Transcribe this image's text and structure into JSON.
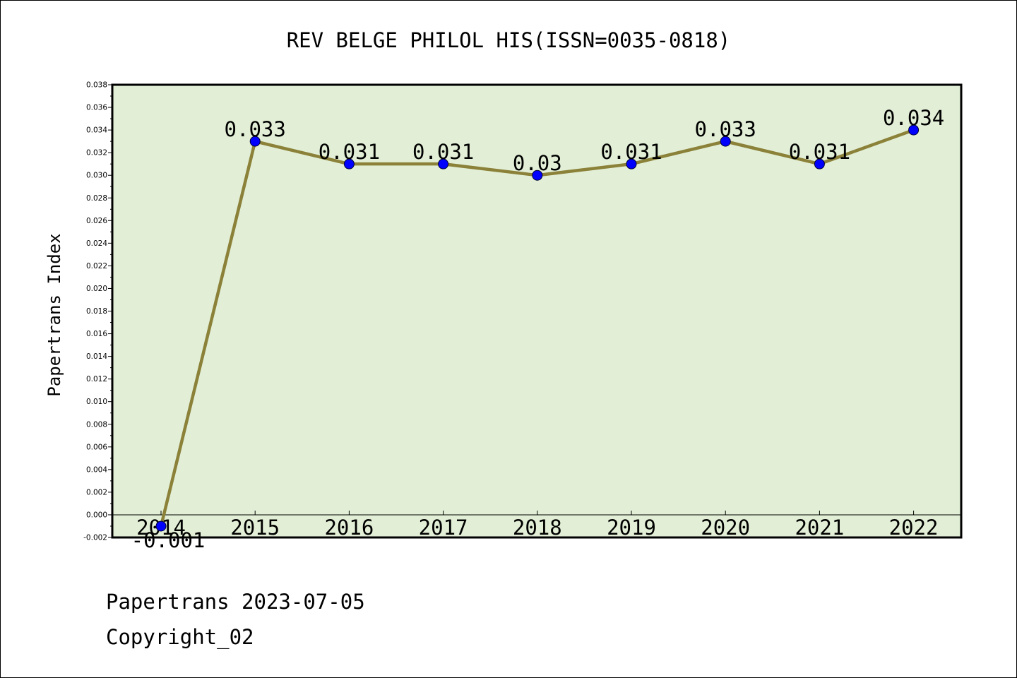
{
  "chart_data": {
    "type": "line",
    "title": "REV BELGE PHILOL HIS(ISSN=0035-0818)",
    "xlabel": "",
    "ylabel": "Papertrans Index",
    "categories": [
      "2014",
      "2015",
      "2016",
      "2017",
      "2018",
      "2019",
      "2020",
      "2021",
      "2022"
    ],
    "series": [
      {
        "values": [
          -0.001,
          0.033,
          0.031,
          0.031,
          0.03,
          0.031,
          0.033,
          0.031,
          0.034
        ],
        "labels": [
          "-0.001",
          "0.033",
          "0.031",
          "0.031",
          "0.03",
          "0.031",
          "0.033",
          "0.031",
          "0.034"
        ]
      }
    ],
    "ylim": [
      -0.002,
      0.038
    ],
    "ytick_step": 0.002,
    "grid": false,
    "legend": "none",
    "colors": {
      "plot_background": "#e2efd6",
      "line": "#8b8139",
      "marker": "#0000ff",
      "marker_edge": "#000033"
    }
  },
  "footer": {
    "line1": "Papertrans 2023-07-05",
    "line2": "Copyright_02"
  }
}
